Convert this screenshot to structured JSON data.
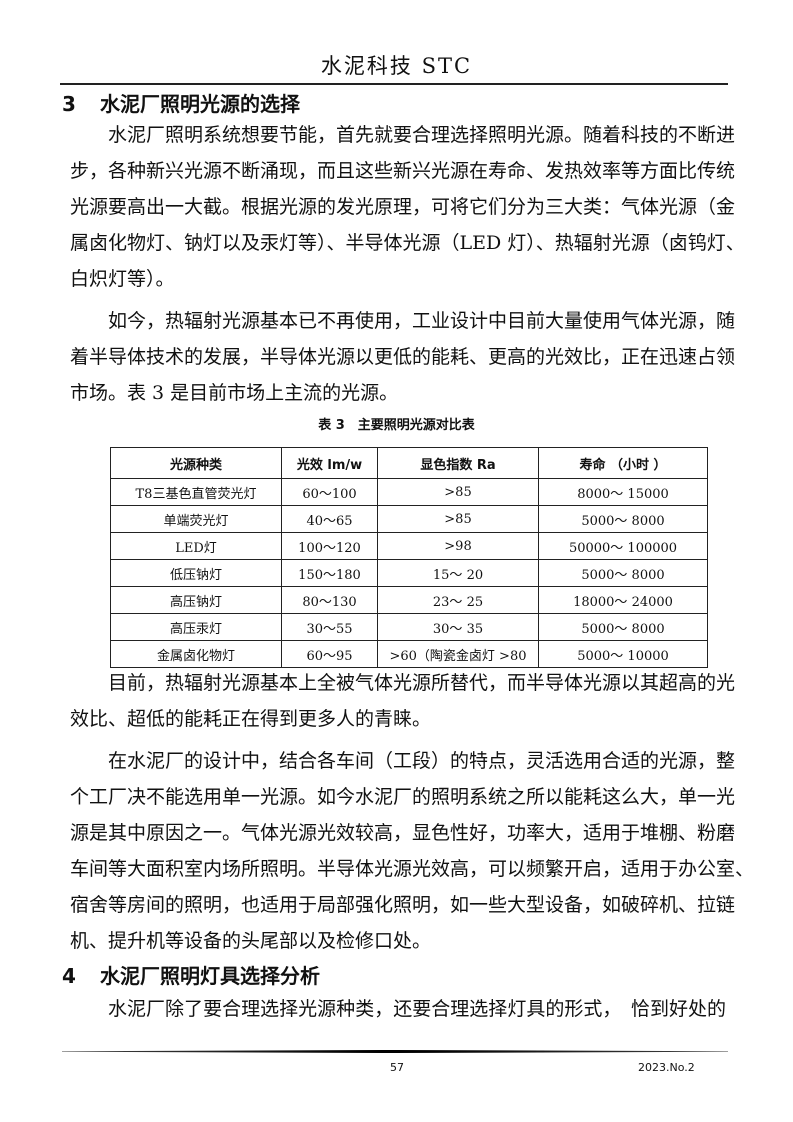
{
  "running_header": "水泥科技 STC",
  "section3": {
    "num": "3",
    "title": "水泥厂照明光源的选择"
  },
  "p1": [
    "水泥厂照明系统想要节能，首先就要合理选择照明光源。随着科技的不断进",
    "步，各种新兴光源不断涌现，而且这些新兴光源在寿命、发热效率等方面比传统",
    "光源要高出一大截。根据光源的发光原理，可将它们分为三大类：气体光源（金",
    "属卤化物灯、钠灯以及汞灯等）、半导体光源（LED 灯）、热辐射光源（卤钨灯、",
    "白炽灯等）。"
  ],
  "p2": [
    "如今，热辐射光源基本已不再使用，工业设计中目前大量使用气体光源，随",
    "着半导体技术的发展，半导体光源以更低的能耗、更高的光效比，正在迅速占领",
    "市场。表 3 是目前市场上主流的光源。"
  ],
  "table": {
    "caption": "表 3　主要照明光源对比表",
    "headers": [
      "光源种类",
      "光效 lm/w",
      "显色指数 Ra",
      "寿命 （小时 ）"
    ],
    "rows": [
      [
        "T8三基色直管荧光灯",
        "60～100",
        ">85",
        "8000～ 15000"
      ],
      [
        "单端荧光灯",
        "40～65",
        ">85",
        "5000～ 8000"
      ],
      [
        "LED灯",
        "100～120",
        ">98",
        "50000～ 100000"
      ],
      [
        "低压钠灯",
        "150～180",
        "15～ 20",
        "5000～ 8000"
      ],
      [
        "高压钠灯",
        "80～130",
        "23～ 25",
        "18000～ 24000"
      ],
      [
        "高压汞灯",
        "30～55",
        "30～ 35",
        "5000～ 8000"
      ],
      [
        "金属卤化物灯",
        "60～95",
        ">60（陶瓷金卤灯 >80",
        "5000～ 10000"
      ]
    ]
  },
  "p3": [
    "目前，热辐射光源基本上全被气体光源所替代，而半导体光源以其超高的光",
    "效比、超低的能耗正在得到更多人的青睐。"
  ],
  "p4": [
    "在水泥厂的设计中，结合各车间（工段）的特点，灵活选用合适的光源，整",
    "个工厂决不能选用单一光源。如今水泥厂的照明系统之所以能耗这么大，单一光",
    "源是其中原因之一。气体光源光效较高，显色性好，功率大，适用于堆棚、粉磨",
    "车间等大面积室内场所照明。半导体光源光效高，可以频繁开启，适用于办公室、",
    "宿舍等房间的照明，也适用于局部强化照明，如一些大型设备，如破碎机、拉链",
    "机、提升机等设备的头尾部以及检修口处。"
  ],
  "section4": {
    "num": "4",
    "title": "水泥厂照明灯具选择分析"
  },
  "p5": [
    "水泥厂除了要合理选择光源种类，还要合理选择灯具的形式，　恰到好处的"
  ],
  "footer": {
    "page": "57",
    "issue": "2023.No.2"
  }
}
